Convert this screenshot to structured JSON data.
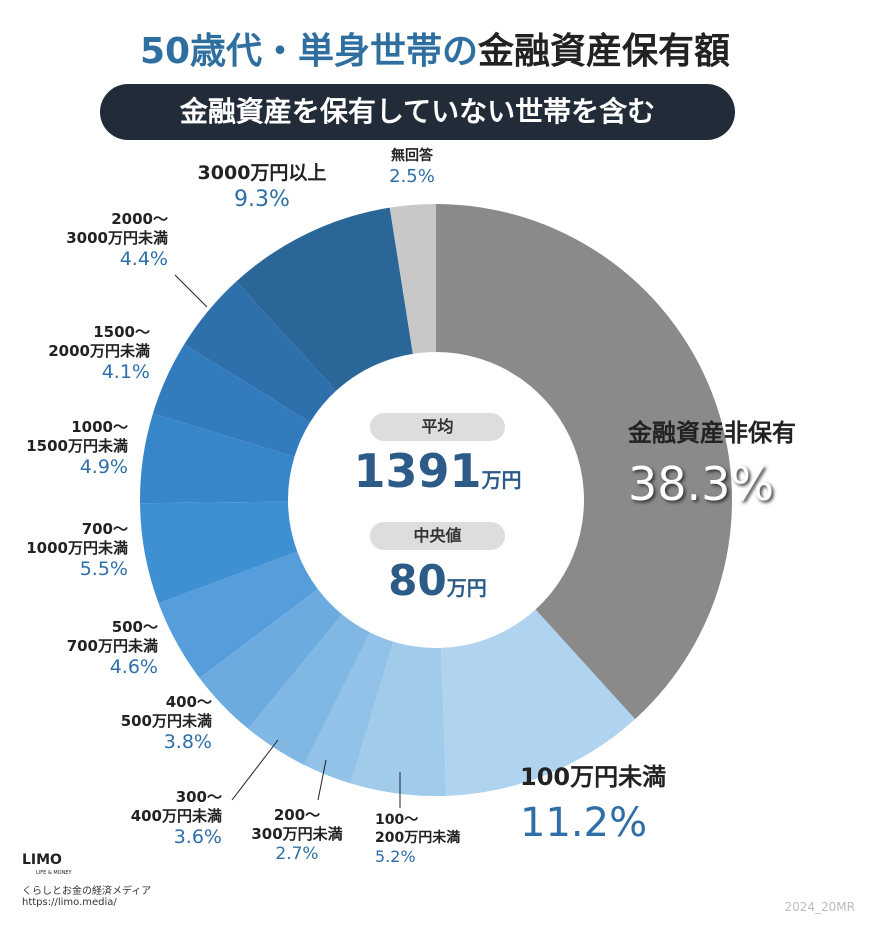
{
  "chart_data": {
    "type": "pie",
    "title": [
      "50歳代・単身世帯の",
      "金融資産保有額"
    ],
    "subtitle": "金融資産を保有していない世帯を含む",
    "categories": [
      "金融資産非保有",
      "100万円未満",
      "100～\n200万円未満",
      "200～\n300万円未満",
      "300～\n400万円未満",
      "400～\n500万円未満",
      "500～\n700万円未満",
      "700～\n1000万円未満",
      "1000～\n1500万円未満",
      "1500～\n2000万円未満",
      "2000～\n3000万円未満",
      "3000万円以上",
      "無回答"
    ],
    "values": [
      38.3,
      11.2,
      5.2,
      2.7,
      3.6,
      3.8,
      4.6,
      5.5,
      4.9,
      4.1,
      4.4,
      9.3,
      2.5
    ],
    "value_labels": [
      "38.3%",
      "11.2%",
      "5.2%",
      "2.7%",
      "3.6%",
      "3.8%",
      "4.6%",
      "5.5%",
      "4.9%",
      "4.1%",
      "4.4%",
      "9.3%",
      "2.5%"
    ],
    "colors": [
      "#8a8a8a",
      "#b0d4ef",
      "#a0cbeb",
      "#92c2e7",
      "#81b8e3",
      "#6cabdf",
      "#559ddb",
      "#3f8fd3",
      "#3886ca",
      "#327cbe",
      "#2e70ab",
      "#2b6698",
      "#c8c8c8"
    ],
    "donut": true,
    "center": {
      "mean_label": "平均",
      "mean_value": "1391",
      "mean_unit": "万円",
      "median_label": "中央値",
      "median_value": "80",
      "median_unit": "万円"
    }
  },
  "footer": {
    "logo": "LIMO",
    "logo_sub": "LIFE & MONEY",
    "tagline": "くらしとお金の経済メディア",
    "url": "https://limo.media/",
    "code": "2024_20MR"
  }
}
